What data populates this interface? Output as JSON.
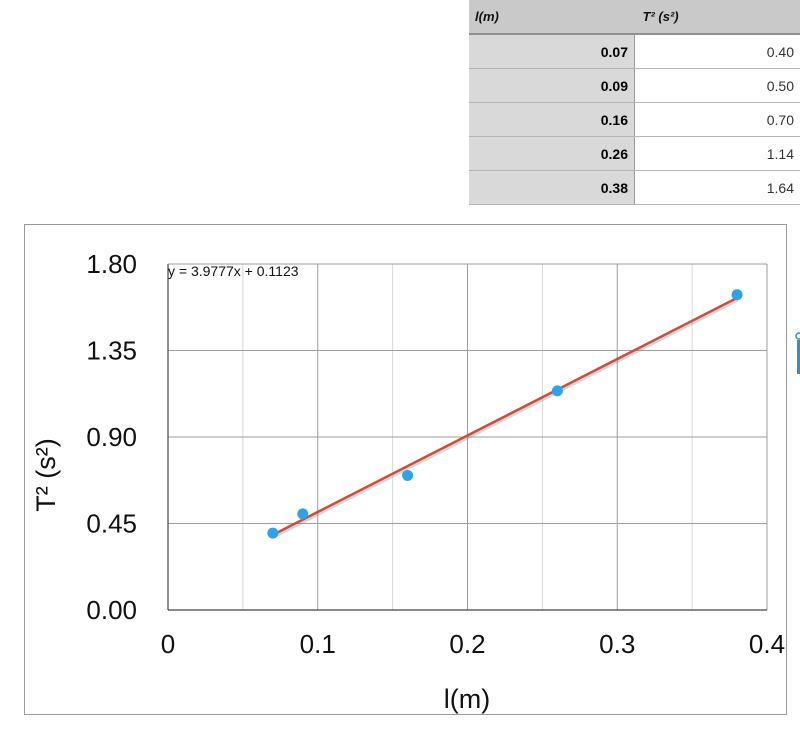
{
  "table": {
    "headers": [
      "l(m)",
      "T² (s²)"
    ],
    "rows": [
      [
        "0.07",
        "0.40"
      ],
      [
        "0.09",
        "0.50"
      ],
      [
        "0.16",
        "0.70"
      ],
      [
        "0.26",
        "1.14"
      ],
      [
        "0.38",
        "1.64"
      ]
    ]
  },
  "chart_data": {
    "type": "scatter",
    "xlabel": "l(m)",
    "ylabel": "T² (s²)",
    "xlim": [
      0,
      0.4
    ],
    "ylim": [
      0,
      1.8
    ],
    "xticks": [
      "0",
      "0.1",
      "0.2",
      "0.3",
      "0.4"
    ],
    "yticks": [
      "0.00",
      "0.45",
      "0.90",
      "1.35",
      "1.80"
    ],
    "grid": true,
    "points": {
      "x": [
        0.07,
        0.09,
        0.16,
        0.26,
        0.38
      ],
      "y": [
        0.4,
        0.5,
        0.7,
        1.14,
        1.64
      ]
    },
    "trendline": {
      "slope": 3.9777,
      "intercept": 0.1123,
      "x_range": [
        0.07,
        0.38
      ],
      "equation": "y = 3.9777x + 0.1123"
    },
    "colors": {
      "points": "#2ea3ea",
      "trendline": "#c8503f",
      "grid_major": "#9e9e9e",
      "grid_minor": "#d6d6d6"
    }
  }
}
